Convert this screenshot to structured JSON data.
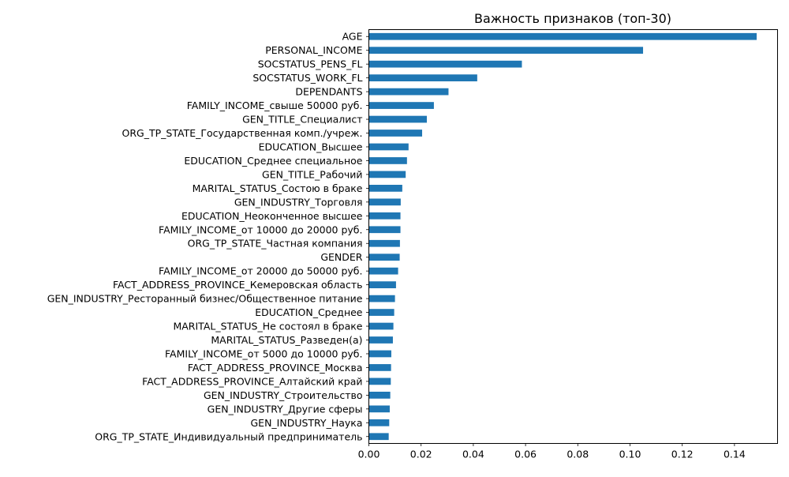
{
  "chart_data": {
    "type": "bar",
    "orientation": "horizontal",
    "title": "Важность признаков (топ-30)",
    "xlabel": "",
    "ylabel": "",
    "xlim": [
      0,
      0.1565
    ],
    "xticks": [
      "0.00",
      "0.02",
      "0.04",
      "0.06",
      "0.08",
      "0.10",
      "0.12",
      "0.14"
    ],
    "xtick_values": [
      0,
      0.02,
      0.04,
      0.06,
      0.08,
      0.1,
      0.12,
      0.14
    ],
    "grid": false,
    "bar_color": "#1f77b4",
    "categories": [
      "AGE",
      "PERSONAL_INCOME",
      "SOCSTATUS_PENS_FL",
      "SOCSTATUS_WORK_FL",
      "DEPENDANTS",
      "FAMILY_INCOME_свыше 50000 руб.",
      "GEN_TITLE_Специалист",
      "ORG_TP_STATE_Государственная комп./учреж.",
      "EDUCATION_Высшее",
      "EDUCATION_Среднее специальное",
      "GEN_TITLE_Рабочий",
      "MARITAL_STATUS_Состою в браке",
      "GEN_INDUSTRY_Торговля",
      "EDUCATION_Неоконченное высшее",
      "FAMILY_INCOME_от 10000 до 20000 руб.",
      "ORG_TP_STATE_Частная компания",
      "GENDER",
      "FAMILY_INCOME_от 20000 до 50000 руб.",
      "FACT_ADDRESS_PROVINCE_Кемеровская область",
      "GEN_INDUSTRY_Ресторанный бизнес/Общественное питание",
      "EDUCATION_Среднее",
      "MARITAL_STATUS_Не состоял в браке",
      "MARITAL_STATUS_Разведен(а)",
      "FAMILY_INCOME_от 5000 до 10000 руб.",
      "FACT_ADDRESS_PROVINCE_Москва",
      "FACT_ADDRESS_PROVINCE_Алтайский край",
      "GEN_INDUSTRY_Строительство",
      "GEN_INDUSTRY_Другие сферы",
      "GEN_INDUSTRY_Наука",
      "ORG_TP_STATE_Индивидуальный предприниматель"
    ],
    "values": [
      0.1485,
      0.105,
      0.0586,
      0.0415,
      0.0305,
      0.0249,
      0.0222,
      0.0204,
      0.0152,
      0.0146,
      0.0141,
      0.0128,
      0.0122,
      0.0121,
      0.0121,
      0.0119,
      0.0118,
      0.0112,
      0.0104,
      0.01,
      0.0097,
      0.0094,
      0.0092,
      0.0086,
      0.0085,
      0.0084,
      0.0082,
      0.008,
      0.0078,
      0.0076
    ]
  }
}
